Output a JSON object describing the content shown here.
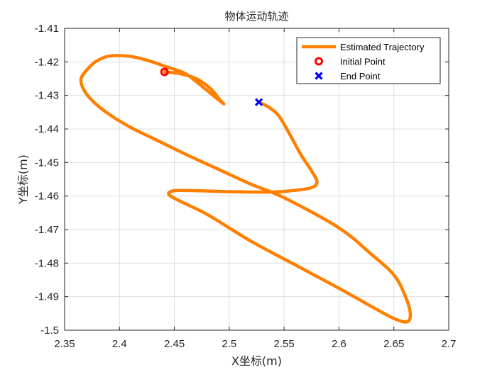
{
  "chart_data": {
    "type": "line",
    "title": "物体运动轨迹",
    "xlabel": "X坐标(m)",
    "ylabel": "Y坐标(m)",
    "xlim": [
      2.35,
      2.7
    ],
    "ylim": [
      -1.5,
      -1.41
    ],
    "xticks": [
      2.35,
      2.4,
      2.45,
      2.5,
      2.55,
      2.6,
      2.65,
      2.7
    ],
    "xtick_labels": [
      "2.35",
      "2.4",
      "2.45",
      "2.5",
      "2.55",
      "2.6",
      "2.65",
      "2.7"
    ],
    "yticks": [
      -1.41,
      -1.42,
      -1.43,
      -1.44,
      -1.45,
      -1.46,
      -1.47,
      -1.48,
      -1.49,
      -1.5
    ],
    "ytick_labels": [
      "-1.41",
      "-1.42",
      "-1.43",
      "-1.44",
      "-1.45",
      "-1.46",
      "-1.47",
      "-1.48",
      "-1.49",
      "-1.5"
    ],
    "grid": true,
    "legend_position": "top-right",
    "series": [
      {
        "name": "Estimated Trajectory",
        "color": "#ff7f00",
        "style": "line",
        "points": [
          [
            2.441,
            -1.423
          ],
          [
            2.455,
            -1.4235
          ],
          [
            2.47,
            -1.425
          ],
          [
            2.483,
            -1.428
          ],
          [
            2.492,
            -1.4315
          ],
          [
            2.495,
            -1.4325
          ],
          [
            2.489,
            -1.431
          ],
          [
            2.476,
            -1.4275
          ],
          [
            2.46,
            -1.4235
          ],
          [
            2.443,
            -1.4215
          ],
          [
            2.425,
            -1.4195
          ],
          [
            2.408,
            -1.4183
          ],
          [
            2.39,
            -1.4183
          ],
          [
            2.378,
            -1.42
          ],
          [
            2.37,
            -1.4225
          ],
          [
            2.365,
            -1.425
          ],
          [
            2.367,
            -1.428
          ],
          [
            2.375,
            -1.4315
          ],
          [
            2.39,
            -1.4355
          ],
          [
            2.41,
            -1.4395
          ],
          [
            2.435,
            -1.4435
          ],
          [
            2.46,
            -1.4475
          ],
          [
            2.49,
            -1.452
          ],
          [
            2.52,
            -1.4565
          ],
          [
            2.55,
            -1.4605
          ],
          [
            2.6,
            -1.4695
          ],
          [
            2.63,
            -1.4775
          ],
          [
            2.65,
            -1.4835
          ],
          [
            2.66,
            -1.4895
          ],
          [
            2.665,
            -1.495
          ],
          [
            2.662,
            -1.4975
          ],
          [
            2.65,
            -1.4965
          ],
          [
            2.63,
            -1.493
          ],
          [
            2.6,
            -1.4875
          ],
          [
            2.56,
            -1.4805
          ],
          [
            2.52,
            -1.4735
          ],
          [
            2.48,
            -1.4655
          ],
          [
            2.455,
            -1.4615
          ],
          [
            2.445,
            -1.4595
          ],
          [
            2.45,
            -1.4584
          ],
          [
            2.47,
            -1.4584
          ],
          [
            2.5,
            -1.4587
          ],
          [
            2.52,
            -1.4588
          ],
          [
            2.54,
            -1.4588
          ],
          [
            2.56,
            -1.4583
          ],
          [
            2.575,
            -1.4575
          ],
          [
            2.58,
            -1.4558
          ],
          [
            2.575,
            -1.4525
          ],
          [
            2.565,
            -1.4475
          ],
          [
            2.555,
            -1.4415
          ],
          [
            2.545,
            -1.436
          ],
          [
            2.536,
            -1.4335
          ],
          [
            2.527,
            -1.432
          ]
        ]
      },
      {
        "name": "Initial Point",
        "color": "#ff0000",
        "style": "circle-marker",
        "points": [
          [
            2.441,
            -1.423
          ]
        ]
      },
      {
        "name": "End Point",
        "color": "#0000ff",
        "style": "x-marker",
        "points": [
          [
            2.527,
            -1.432
          ]
        ]
      }
    ]
  }
}
